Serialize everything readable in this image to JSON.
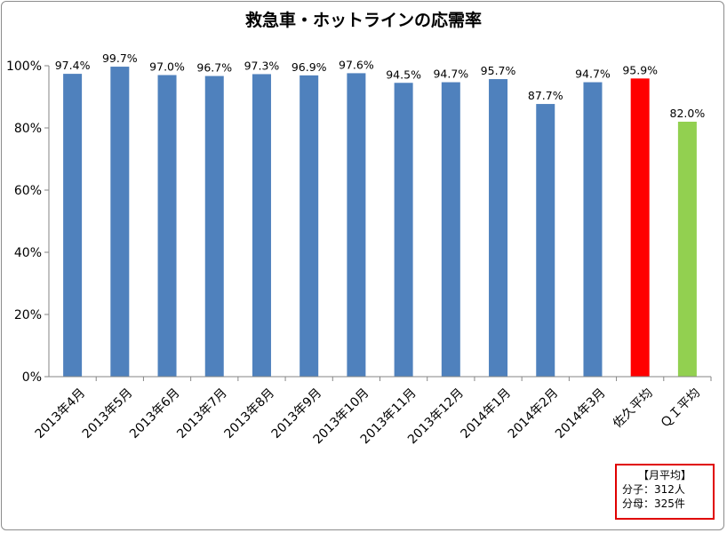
{
  "chart_data": {
    "type": "bar",
    "title": "救急車・ホットラインの応需率",
    "categories": [
      "2013年4月",
      "2013年5月",
      "2013年6月",
      "2013年7月",
      "2013年8月",
      "2013年9月",
      "2013年10月",
      "2013年11月",
      "2013年12月",
      "2014年1月",
      "2014年2月",
      "2014年3月",
      "佐久平均",
      "ＱＩ平均"
    ],
    "values": [
      97.4,
      99.7,
      97.0,
      96.7,
      97.3,
      96.9,
      97.6,
      94.5,
      94.7,
      95.7,
      87.7,
      94.7,
      95.9,
      82.0
    ],
    "value_labels": [
      "97.4%",
      "99.7%",
      "97.0%",
      "96.7%",
      "97.3%",
      "96.9%",
      "97.6%",
      "94.5%",
      "94.7%",
      "95.7%",
      "87.7%",
      "94.7%",
      "95.9%",
      "82.0%"
    ],
    "bar_colors": [
      "#4f81bd",
      "#4f81bd",
      "#4f81bd",
      "#4f81bd",
      "#4f81bd",
      "#4f81bd",
      "#4f81bd",
      "#4f81bd",
      "#4f81bd",
      "#4f81bd",
      "#4f81bd",
      "#4f81bd",
      "#ff0000",
      "#92d050"
    ],
    "ylim": [
      0,
      100
    ],
    "yticks": [
      0,
      20,
      40,
      60,
      80,
      100
    ],
    "ytick_labels": [
      "0%",
      "20%",
      "40%",
      "60%",
      "80%",
      "100%"
    ],
    "xlabel": "",
    "ylabel": "",
    "grid": false
  },
  "note": {
    "heading": "【月平均】",
    "numerator_label": "分子：",
    "numerator_value": "312人",
    "denominator_label": "分母：",
    "denominator_value": "325件",
    "border_color": "#e00000"
  }
}
